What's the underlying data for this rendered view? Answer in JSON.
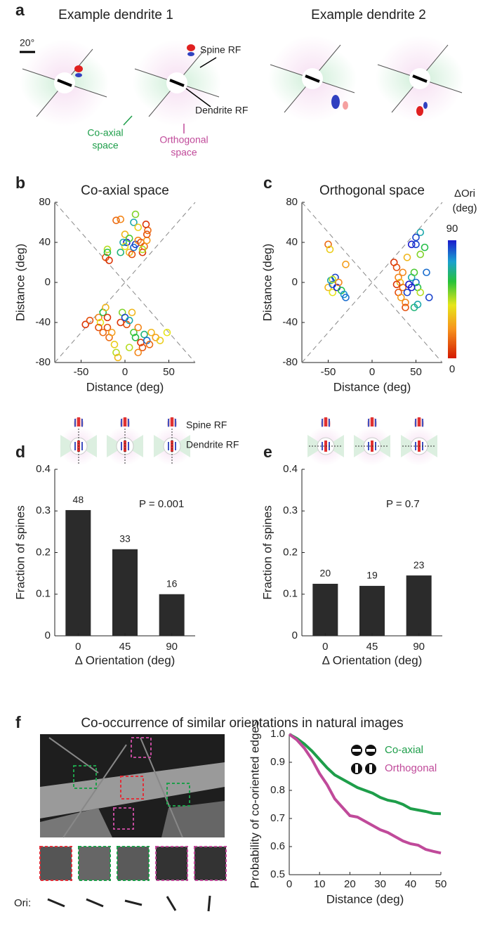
{
  "panel_labels": [
    "a",
    "b",
    "c",
    "d",
    "e",
    "f"
  ],
  "panel_a": {
    "titles": [
      "Example dendrite 1",
      "Example dendrite 2"
    ],
    "scale_bar": "20°",
    "spine_rf": "Spine RF",
    "dendrite_rf": "Dendrite RF",
    "coaxial": [
      "Co-axial",
      "space"
    ],
    "orthogonal": [
      "Orthogonal",
      "space"
    ]
  },
  "panel_d_insets": {
    "spine_rf": "Spine RF",
    "dendrite_rf": "Dendrite RF"
  },
  "panel_f": {
    "title": "Co-occurrence of similar orientations in natural images",
    "ori_label": "Ori:"
  },
  "chart_data": [
    {
      "type": "scatter",
      "title": "Co-axial space",
      "xlabel": "Distance (deg)",
      "ylabel": "Distance (deg)",
      "xlim": [
        -80,
        80
      ],
      "ylim": [
        -80,
        80
      ],
      "xticks": [
        -50,
        0,
        50
      ],
      "yticks": [
        -80,
        -40,
        0,
        40,
        80
      ],
      "x": [
        -22,
        -18,
        -20,
        -20,
        -5,
        -10,
        0,
        2,
        5,
        0,
        -5,
        5,
        8,
        10,
        12,
        10,
        12,
        15,
        15,
        18,
        20,
        22,
        25,
        25,
        26,
        24,
        20,
        -2,
        -45,
        -40,
        -30,
        -28,
        -25,
        -22,
        -20,
        -20,
        -18,
        -15,
        -12,
        -10,
        -8,
        -5,
        -3,
        0,
        2,
        5,
        8,
        10,
        12,
        15,
        18,
        20,
        22,
        25,
        28,
        30,
        35,
        40,
        48,
        15,
        5,
        -25,
        -30
      ],
      "y": [
        25,
        22,
        33,
        30,
        63,
        62,
        48,
        40,
        44,
        36,
        30,
        30,
        28,
        35,
        38,
        60,
        68,
        55,
        42,
        40,
        30,
        36,
        42,
        48,
        52,
        58,
        33,
        40,
        -42,
        -38,
        -35,
        -40,
        -30,
        -25,
        -35,
        -45,
        -55,
        -50,
        -62,
        -70,
        -75,
        -40,
        -30,
        -35,
        -42,
        -38,
        -30,
        -50,
        -55,
        -45,
        -60,
        -65,
        -52,
        -58,
        -62,
        -50,
        -55,
        -58,
        -50,
        -70,
        -65,
        -50,
        -45
      ],
      "ori": [
        10,
        5,
        45,
        60,
        20,
        15,
        30,
        90,
        55,
        40,
        65,
        30,
        10,
        80,
        85,
        70,
        50,
        35,
        20,
        10,
        5,
        15,
        25,
        10,
        15,
        5,
        45,
        70,
        5,
        10,
        20,
        40,
        60,
        30,
        5,
        10,
        15,
        25,
        35,
        45,
        30,
        5,
        50,
        85,
        10,
        70,
        30,
        55,
        60,
        20,
        5,
        10,
        65,
        80,
        15,
        30,
        25,
        35,
        40,
        20,
        45,
        15,
        10
      ]
    },
    {
      "type": "scatter",
      "title": "Orthogonal space",
      "xlabel": "Distance (deg)",
      "ylabel": "Distance (deg)",
      "xlim": [
        -80,
        80
      ],
      "ylim": [
        -80,
        80
      ],
      "xticks": [
        -50,
        0,
        50
      ],
      "yticks": [
        -80,
        -40,
        0,
        40,
        80
      ],
      "x": [
        -50,
        -48,
        -50,
        -47,
        -45,
        -42,
        -45,
        -40,
        -38,
        -35,
        -32,
        -30,
        -30,
        -45,
        25,
        28,
        30,
        32,
        35,
        30,
        33,
        38,
        40,
        42,
        45,
        48,
        50,
        52,
        55,
        48,
        40,
        45,
        50,
        55,
        50,
        60,
        55,
        62,
        65,
        52,
        38,
        45,
        35,
        28
      ],
      "y": [
        38,
        33,
        -5,
        2,
        -2,
        5,
        -10,
        -5,
        0,
        -8,
        -12,
        -15,
        18,
        3,
        20,
        15,
        5,
        0,
        -5,
        -10,
        -15,
        -20,
        -10,
        -2,
        5,
        10,
        0,
        -5,
        -10,
        -25,
        25,
        38,
        38,
        50,
        45,
        35,
        28,
        10,
        -15,
        -22,
        -25,
        -5,
        10,
        -2
      ],
      "ori": [
        15,
        35,
        30,
        70,
        80,
        85,
        40,
        90,
        20,
        60,
        75,
        80,
        25,
        45,
        5,
        10,
        20,
        30,
        15,
        10,
        25,
        20,
        85,
        90,
        70,
        55,
        80,
        60,
        45,
        65,
        30,
        90,
        85,
        70,
        85,
        60,
        50,
        80,
        85,
        70,
        10,
        90,
        20,
        5
      ],
      "colorbar": {
        "label": [
          "ΔOri",
          "(deg)"
        ],
        "clim": [
          0,
          90
        ],
        "ticks": [
          0,
          90
        ]
      }
    },
    {
      "type": "bar",
      "xlabel": "Δ Orientation (deg)",
      "ylabel": "Fraction of spines",
      "categories": [
        "0",
        "45",
        "90"
      ],
      "values": [
        0.302,
        0.208,
        0.1
      ],
      "counts": [
        48,
        33,
        16
      ],
      "annotation": "P =  0.001",
      "color": "#2b2b2b",
      "ylim": [
        0,
        0.4
      ],
      "yticks": [
        0,
        0.1,
        0.2,
        0.3,
        0.4
      ]
    },
    {
      "type": "bar",
      "xlabel": "Δ Orientation (deg)",
      "ylabel": "Fraction of spines",
      "categories": [
        "0",
        "45",
        "90"
      ],
      "values": [
        0.125,
        0.12,
        0.145
      ],
      "counts": [
        20,
        19,
        23
      ],
      "annotation": "P = 0.7",
      "color": "#2b2b2b",
      "ylim": [
        0,
        0.4
      ],
      "yticks": [
        0,
        0.1,
        0.2,
        0.3,
        0.4
      ]
    },
    {
      "type": "line",
      "xlabel": "Distance (deg)",
      "ylabel": "Probability of co-oriented edges",
      "xlim": [
        0,
        50
      ],
      "ylim": [
        0.5,
        1
      ],
      "xticks": [
        0,
        10,
        20,
        30,
        40,
        50
      ],
      "yticks": [
        0.5,
        0.6,
        0.7,
        0.8,
        0.9,
        {
          "value": 1,
          "label": "1.0"
        }
      ],
      "x": [
        0,
        2.5,
        5,
        7.5,
        10,
        12.5,
        15,
        17.5,
        20,
        22.5,
        25,
        27.5,
        30,
        32.5,
        35,
        37.5,
        40,
        42.5,
        45,
        47.5,
        50
      ],
      "series": [
        {
          "name": "Co-axial",
          "color": "#1e9e4a",
          "values": [
            1,
            0.985,
            0.965,
            0.94,
            0.91,
            0.88,
            0.855,
            0.84,
            0.825,
            0.81,
            0.8,
            0.79,
            0.775,
            0.765,
            0.76,
            0.75,
            0.735,
            0.73,
            0.725,
            0.718,
            0.717
          ]
        },
        {
          "name": "Orthogonal",
          "color": "#c04a9a",
          "values": [
            1,
            0.98,
            0.95,
            0.91,
            0.86,
            0.82,
            0.77,
            0.74,
            0.71,
            0.705,
            0.69,
            0.675,
            0.66,
            0.65,
            0.635,
            0.62,
            0.61,
            0.605,
            0.59,
            0.583,
            0.577
          ]
        }
      ]
    }
  ]
}
